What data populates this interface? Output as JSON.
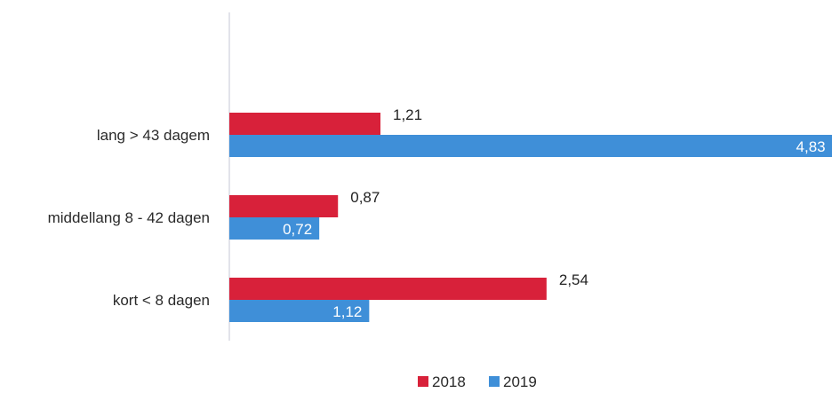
{
  "chart_data": {
    "type": "bar",
    "orientation": "horizontal",
    "categories": [
      "lang > 43 dagem",
      "middellang 8 - 42 dagen",
      "kort < 8 dagen"
    ],
    "series": [
      {
        "name": "2018",
        "values": [
          1.21,
          0.87,
          2.54
        ],
        "labels": [
          "1,21",
          "0,87",
          "2,54"
        ],
        "color": "#d8213a"
      },
      {
        "name": "2019",
        "values": [
          4.83,
          0.72,
          1.12
        ],
        "labels": [
          "4,83",
          "0,72",
          "1,12"
        ],
        "color": "#3f8fd8"
      }
    ],
    "legend": {
      "position": "bottom"
    },
    "grid": false
  }
}
